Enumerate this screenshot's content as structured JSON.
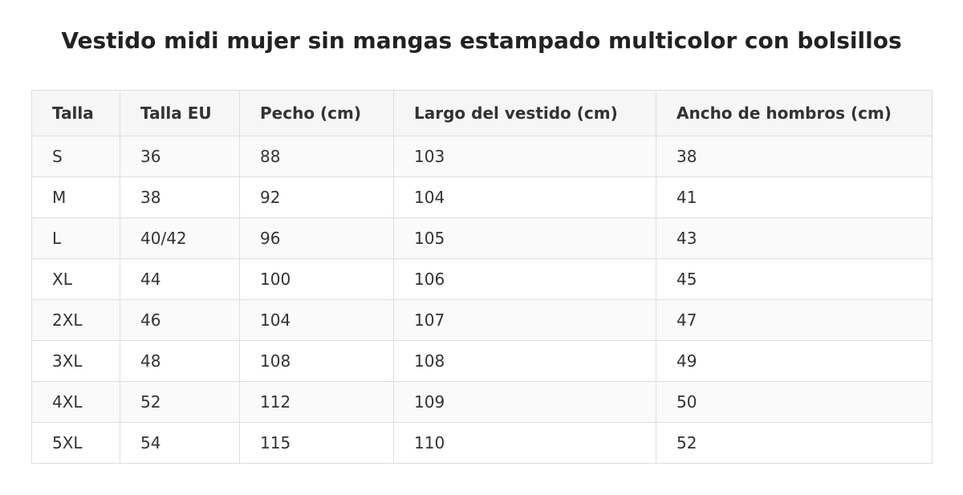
{
  "header": {
    "title": "Vestido midi mujer sin mangas estampado multicolor con bolsillos"
  },
  "table": {
    "columns": [
      "Talla",
      "Talla EU",
      "Pecho (cm)",
      "Largo del vestido (cm)",
      "Ancho de hombros (cm)"
    ],
    "rows": [
      [
        "S",
        36,
        88,
        103,
        38
      ],
      [
        "M",
        38,
        92,
        104,
        41
      ],
      [
        "L",
        "40/42",
        96,
        105,
        43
      ],
      [
        "XL",
        44,
        100,
        106,
        45
      ],
      [
        "2XL",
        46,
        104,
        107,
        47
      ],
      [
        "3XL",
        48,
        108,
        108,
        49
      ],
      [
        "4XL",
        52,
        112,
        109,
        50
      ],
      [
        "5XL",
        54,
        115,
        110,
        52
      ]
    ]
  }
}
